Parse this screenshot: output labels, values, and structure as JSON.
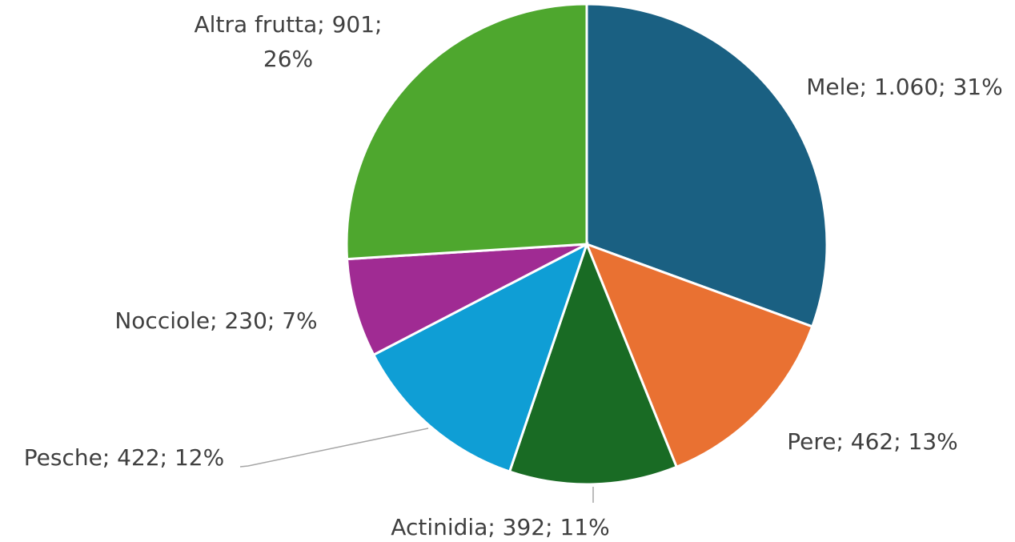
{
  "chart_data": {
    "type": "pie",
    "values": [
      1060,
      462,
      392,
      422,
      230,
      901
    ],
    "value_labels": [
      "Mele; 1.060; 31%",
      "Pere; 462; 13%",
      "Actinidia; 392; 11%",
      "Pesche; 422; 12%",
      "Nocciole; 230; 7%",
      "Altra frutta; 901;\n26%"
    ],
    "colors": [
      "#1a6082",
      "#e97132",
      "#196b24",
      "#0f9ed5",
      "#a02b93",
      "#4ea72e"
    ]
  }
}
